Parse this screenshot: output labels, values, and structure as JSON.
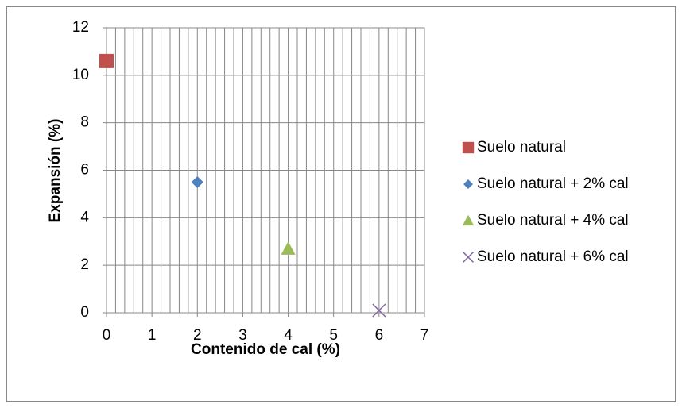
{
  "chart_data": {
    "type": "scatter",
    "x_label": "Contenido de cal (%)",
    "y_label": "Expansión (%)",
    "xlim": [
      0,
      7
    ],
    "xticks": [
      0,
      1,
      2,
      3,
      4,
      5,
      6,
      7
    ],
    "ylim": [
      0,
      12
    ],
    "yticks": [
      0,
      2,
      4,
      6,
      8,
      10,
      12
    ],
    "grid": true,
    "x_minor_grid_step": 0.2,
    "legend": "right",
    "series": [
      {
        "name": "Suelo natural",
        "color": "#c0504d",
        "marker": "square",
        "x": [
          0
        ],
        "values": [
          10.6
        ]
      },
      {
        "name": "Suelo natural + 2% cal",
        "color": "#4f81bd",
        "marker": "diamond",
        "x": [
          2
        ],
        "values": [
          5.5
        ]
      },
      {
        "name": "Suelo natural + 4% cal",
        "color": "#9bbb59",
        "marker": "triangle",
        "x": [
          4
        ],
        "values": [
          2.7
        ]
      },
      {
        "name": "Suelo natural + 6% cal",
        "color": "#8064a2",
        "marker": "x",
        "x": [
          6
        ],
        "values": [
          0.1
        ]
      }
    ]
  }
}
